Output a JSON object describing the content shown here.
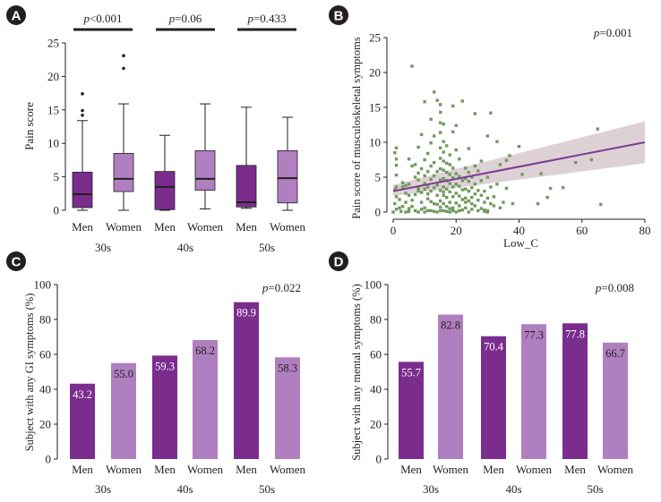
{
  "colors": {
    "men": "#7b2d8e",
    "women": "#b07fc0",
    "scatter": "#6f9a5c",
    "regression": "#7b3d8f",
    "ci": "#d9ccd2",
    "badge": "#231f20"
  },
  "chart_data": [
    {
      "id": "A",
      "type": "box",
      "ylabel": "Pain score",
      "ylim": [
        0,
        25
      ],
      "yticks": [
        0,
        5,
        10,
        15,
        20,
        25
      ],
      "groups": [
        {
          "label": "30s",
          "p": "p<0.001",
          "p_prefix": "p",
          "p_rest": "<0.001"
        },
        {
          "label": "40s",
          "p": "p=0.06",
          "p_prefix": "p",
          "p_rest": "=0.06"
        },
        {
          "label": "50s",
          "p": "p=0.433",
          "p_prefix": "p",
          "p_rest": "=0.433"
        }
      ],
      "boxes": [
        {
          "group": "30s",
          "sex": "Men",
          "min": 0,
          "q1": 0.4,
          "median": 2.4,
          "q3": 5.7,
          "max": 13.4,
          "outliers": [
            14.2,
            14.9,
            17.4
          ]
        },
        {
          "group": "30s",
          "sex": "Women",
          "min": 0,
          "q1": 2.8,
          "median": 4.7,
          "q3": 8.5,
          "max": 15.9,
          "outliers": [
            21.2,
            23.1
          ]
        },
        {
          "group": "40s",
          "sex": "Men",
          "min": 0,
          "q1": 0.1,
          "median": 3.5,
          "q3": 5.8,
          "max": 11.2,
          "outliers": []
        },
        {
          "group": "40s",
          "sex": "Women",
          "min": 0.2,
          "q1": 3.0,
          "median": 4.7,
          "q3": 8.9,
          "max": 15.9,
          "outliers": []
        },
        {
          "group": "50s",
          "sex": "Men",
          "min": 0.3,
          "q1": 0.5,
          "median": 1.2,
          "q3": 6.7,
          "max": 15.4,
          "outliers": []
        },
        {
          "group": "50s",
          "sex": "Women",
          "min": 0,
          "q1": 1.1,
          "median": 4.8,
          "q3": 8.9,
          "max": 13.9,
          "outliers": []
        }
      ]
    },
    {
      "id": "B",
      "type": "scatter",
      "xlabel": "Low_C",
      "ylabel": "Pain score of musculoskeletal symptoms",
      "annotation": "p=0.001",
      "annotation_prefix": "p",
      "annotation_rest": "=0.001",
      "xlim": [
        0,
        80
      ],
      "ylim": [
        0,
        25
      ],
      "xticks": [
        0,
        20,
        40,
        60,
        80
      ],
      "yticks": [
        0,
        5,
        10,
        15,
        20,
        25
      ],
      "regression": {
        "x": [
          0,
          80
        ],
        "y": [
          3.0,
          10.0
        ]
      },
      "ci_band": {
        "x": [
          0,
          80
        ],
        "lower": [
          2.3,
          7.0
        ],
        "upper": [
          3.9,
          13.0
        ]
      },
      "points": [
        [
          0,
          0
        ],
        [
          0.5,
          1.2
        ],
        [
          0.5,
          3.2
        ],
        [
          1,
          0.4
        ],
        [
          1,
          2.2
        ],
        [
          1,
          3.6
        ],
        [
          1,
          5.3
        ],
        [
          1,
          6.7
        ],
        [
          1,
          7.6
        ],
        [
          1,
          9.2
        ],
        [
          0.5,
          8.5
        ],
        [
          2,
          0.6
        ],
        [
          2,
          1.8
        ],
        [
          2.5,
          0.1
        ],
        [
          3,
          0.8
        ],
        [
          3,
          3.6
        ],
        [
          3,
          4.2
        ],
        [
          4,
          0
        ],
        [
          4,
          1.4
        ],
        [
          4,
          2.7
        ],
        [
          4,
          3.8
        ],
        [
          5,
          0.5
        ],
        [
          5,
          2.4
        ],
        [
          5,
          4.0
        ],
        [
          5,
          7.6
        ],
        [
          5,
          0.1
        ],
        [
          6,
          1.7
        ],
        [
          6,
          6.6
        ],
        [
          6,
          20.9
        ],
        [
          6,
          0.8
        ],
        [
          7,
          2.5
        ],
        [
          7,
          5.0
        ],
        [
          7,
          6.8
        ],
        [
          7,
          0.2
        ],
        [
          8,
          0
        ],
        [
          8,
          3.4
        ],
        [
          8,
          4.6
        ],
        [
          8,
          5.6
        ],
        [
          8,
          9.3
        ],
        [
          8,
          3.0
        ],
        [
          9,
          1.4
        ],
        [
          9,
          2.8
        ],
        [
          9,
          6.2
        ],
        [
          9,
          11.1
        ],
        [
          9,
          0.4
        ],
        [
          10,
          0
        ],
        [
          10,
          0.6
        ],
        [
          10,
          3.3
        ],
        [
          10,
          4.1
        ],
        [
          10,
          5.2
        ],
        [
          10,
          7.5
        ],
        [
          10,
          15.8
        ],
        [
          11,
          1.9
        ],
        [
          11,
          2.6
        ],
        [
          11,
          3.6
        ],
        [
          11,
          5.8
        ],
        [
          11,
          8.4
        ],
        [
          11,
          0.2
        ],
        [
          12,
          0.2
        ],
        [
          12,
          3.0
        ],
        [
          12,
          4.7
        ],
        [
          12,
          6.6
        ],
        [
          12,
          9.9
        ],
        [
          12,
          13.3
        ],
        [
          12,
          1.5
        ],
        [
          13,
          1.2
        ],
        [
          13,
          3.5
        ],
        [
          13,
          5.2
        ],
        [
          13,
          7.1
        ],
        [
          13,
          10.9
        ],
        [
          13,
          17.2
        ],
        [
          13,
          0.1
        ],
        [
          14,
          0
        ],
        [
          14,
          2.4
        ],
        [
          14,
          3.9
        ],
        [
          14,
          5.8
        ],
        [
          14,
          16.0
        ],
        [
          14,
          1.1
        ],
        [
          15,
          0.7
        ],
        [
          15,
          1.6
        ],
        [
          15,
          3.1
        ],
        [
          15,
          4.6
        ],
        [
          15,
          6.2
        ],
        [
          15,
          7.7
        ],
        [
          15,
          9.2
        ],
        [
          15,
          11.4
        ],
        [
          15,
          12.8
        ],
        [
          15,
          14.3
        ],
        [
          15,
          15.4
        ],
        [
          15,
          0.2
        ],
        [
          16,
          0.2
        ],
        [
          16,
          1.2
        ],
        [
          16,
          2.4
        ],
        [
          16,
          3.6
        ],
        [
          16,
          4.8
        ],
        [
          16,
          6.0
        ],
        [
          16,
          7.3
        ],
        [
          16,
          8.6
        ],
        [
          16,
          10.1
        ],
        [
          16,
          12.6
        ],
        [
          16,
          2.9
        ],
        [
          17,
          0.8
        ],
        [
          17,
          2.1
        ],
        [
          17,
          3.3
        ],
        [
          17,
          4.5
        ],
        [
          17,
          5.7
        ],
        [
          17,
          7.0
        ],
        [
          17,
          9.5
        ],
        [
          17,
          0.1
        ],
        [
          18,
          0
        ],
        [
          18,
          1.4
        ],
        [
          18,
          2.9
        ],
        [
          18,
          4.1
        ],
        [
          18,
          5.4
        ],
        [
          18,
          6.8
        ],
        [
          18,
          8.2
        ],
        [
          18,
          0.5
        ],
        [
          19,
          0.6
        ],
        [
          19,
          2.2
        ],
        [
          19,
          3.6
        ],
        [
          19,
          4.9
        ],
        [
          19,
          6.3
        ],
        [
          19,
          11.5
        ],
        [
          19,
          15.2
        ],
        [
          19,
          0.2
        ],
        [
          20,
          0
        ],
        [
          20,
          1.3
        ],
        [
          20,
          2.7
        ],
        [
          20,
          4.0
        ],
        [
          20,
          5.5
        ],
        [
          20,
          8.9
        ],
        [
          20,
          12.4
        ],
        [
          21,
          0.9
        ],
        [
          21,
          2.3
        ],
        [
          21,
          3.7
        ],
        [
          21,
          5.1
        ],
        [
          21,
          7.6
        ],
        [
          21,
          0.2
        ],
        [
          22,
          0.3
        ],
        [
          22,
          1.8
        ],
        [
          22,
          3.2
        ],
        [
          22,
          4.5
        ],
        [
          22,
          15.9
        ],
        [
          23,
          0.6
        ],
        [
          23,
          2.0
        ],
        [
          23,
          3.3
        ],
        [
          23,
          4.8
        ],
        [
          23,
          6.3
        ],
        [
          23,
          1.4
        ],
        [
          24,
          0
        ],
        [
          24,
          1.6
        ],
        [
          24,
          3.0
        ],
        [
          24,
          4.4
        ],
        [
          24,
          5.7
        ],
        [
          24,
          9.1
        ],
        [
          25,
          0.4
        ],
        [
          25,
          2.1
        ],
        [
          25,
          3.5
        ],
        [
          25,
          5.0
        ],
        [
          25,
          1.2
        ],
        [
          26,
          0.9
        ],
        [
          26,
          2.6
        ],
        [
          26,
          4.0
        ],
        [
          26,
          6.6
        ],
        [
          26,
          14.1
        ],
        [
          27,
          0.2
        ],
        [
          27,
          1.7
        ],
        [
          27,
          3.1
        ],
        [
          27,
          5.9
        ],
        [
          28,
          0.5
        ],
        [
          28,
          2.4
        ],
        [
          28,
          4.5
        ],
        [
          28,
          7.3
        ],
        [
          29,
          0.1
        ],
        [
          29,
          1.4
        ],
        [
          29,
          3.0
        ],
        [
          29,
          0.3
        ],
        [
          30,
          0
        ],
        [
          30,
          2.0
        ],
        [
          30,
          5.0
        ],
        [
          30,
          10.9
        ],
        [
          30,
          0.2
        ],
        [
          31,
          1.2
        ],
        [
          31,
          3.6
        ],
        [
          31,
          14.2
        ],
        [
          32,
          0.9
        ],
        [
          32,
          2.2
        ],
        [
          33,
          4.0
        ],
        [
          33,
          10.1
        ],
        [
          34,
          0.6
        ],
        [
          34,
          6.8
        ],
        [
          35,
          1.4
        ],
        [
          36,
          3.4
        ],
        [
          36,
          7.4
        ],
        [
          37,
          8.1
        ],
        [
          38,
          1.2
        ],
        [
          40,
          9.4
        ],
        [
          41,
          5.4
        ],
        [
          46,
          1.2
        ],
        [
          47,
          5.5
        ],
        [
          49,
          2.1
        ],
        [
          50,
          3.4
        ],
        [
          54,
          3.5
        ],
        [
          58,
          7.1
        ],
        [
          63,
          7.5
        ],
        [
          65,
          11.9
        ],
        [
          66,
          1.1
        ]
      ]
    },
    {
      "id": "C",
      "type": "bar",
      "ylabel": "Subject with any GI symptoms (%)",
      "annotation": "p=0.022",
      "annotation_prefix": "p",
      "annotation_rest": "=0.022",
      "ylim": [
        0,
        100
      ],
      "yticks": [
        0,
        20,
        40,
        60,
        80,
        100
      ],
      "groups": [
        "30s",
        "40s",
        "50s"
      ],
      "bars": [
        {
          "group": "30s",
          "sex": "Men",
          "value": 43.2,
          "label": "43.2"
        },
        {
          "group": "30s",
          "sex": "Women",
          "value": 55.0,
          "label": "55.0"
        },
        {
          "group": "40s",
          "sex": "Men",
          "value": 59.3,
          "label": "59.3"
        },
        {
          "group": "40s",
          "sex": "Women",
          "value": 68.2,
          "label": "68.2"
        },
        {
          "group": "50s",
          "sex": "Men",
          "value": 89.9,
          "label": "89.9"
        },
        {
          "group": "50s",
          "sex": "Women",
          "value": 58.3,
          "label": "58.3"
        }
      ]
    },
    {
      "id": "D",
      "type": "bar",
      "ylabel": "Subject with any mental symptoms (%)",
      "annotation": "p=0.008",
      "annotation_prefix": "p",
      "annotation_rest": "=0.008",
      "ylim": [
        0,
        100
      ],
      "yticks": [
        0,
        20,
        40,
        60,
        80,
        100
      ],
      "groups": [
        "30s",
        "40s",
        "50s"
      ],
      "bars": [
        {
          "group": "30s",
          "sex": "Men",
          "value": 55.7,
          "label": "55.7"
        },
        {
          "group": "30s",
          "sex": "Women",
          "value": 82.8,
          "label": "82.8"
        },
        {
          "group": "40s",
          "sex": "Men",
          "value": 70.4,
          "label": "70.4"
        },
        {
          "group": "40s",
          "sex": "Women",
          "value": 77.3,
          "label": "77.3"
        },
        {
          "group": "50s",
          "sex": "Men",
          "value": 77.8,
          "label": "77.8"
        },
        {
          "group": "50s",
          "sex": "Women",
          "value": 66.7,
          "label": "66.7"
        }
      ]
    }
  ]
}
